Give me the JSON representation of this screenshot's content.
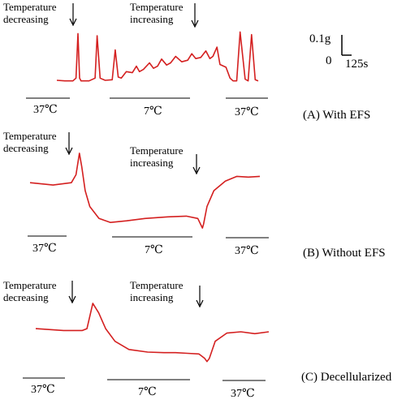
{
  "colors": {
    "trace": "#d42020",
    "ink": "#000000",
    "background": "#ffffff"
  },
  "scale_bar": {
    "force_label": "0.1g",
    "origin_label": "0",
    "time_label": "125s"
  },
  "chart_data": [
    {
      "type": "line",
      "caption": "(A) With  EFS",
      "annotations": [
        {
          "line1": "Temperature",
          "line2": "decreasing"
        },
        {
          "line1": "Temperature",
          "line2": "increasing"
        }
      ],
      "phases": [
        "37℃",
        "7℃",
        "37℃"
      ],
      "series": [
        {
          "x": [
            0,
            0.04,
            0.08,
            0.095,
            0.105,
            0.113,
            0.12,
            0.16,
            0.19,
            0.2,
            0.215,
            0.24,
            0.275,
            0.29,
            0.305,
            0.32,
            0.345,
            0.375,
            0.395,
            0.41,
            0.43,
            0.46,
            0.48,
            0.5,
            0.52,
            0.545,
            0.565,
            0.59,
            0.62,
            0.65,
            0.67,
            0.69,
            0.715,
            0.74,
            0.76,
            0.775,
            0.795,
            0.81,
            0.84,
            0.86,
            0.875,
            0.893,
            0.91,
            0.935,
            0.95,
            0.967,
            0.985,
            1.0
          ],
          "y": [
            0.06,
            0.05,
            0.05,
            0.1,
            0.92,
            0.1,
            0.05,
            0.05,
            0.1,
            0.88,
            0.1,
            0.06,
            0.07,
            0.62,
            0.12,
            0.1,
            0.22,
            0.2,
            0.32,
            0.22,
            0.26,
            0.38,
            0.28,
            0.32,
            0.45,
            0.34,
            0.38,
            0.5,
            0.4,
            0.43,
            0.55,
            0.46,
            0.48,
            0.6,
            0.46,
            0.5,
            0.67,
            0.35,
            0.3,
            0.1,
            0.05,
            0.05,
            0.95,
            0.08,
            0.05,
            0.9,
            0.07,
            0.05
          ]
        }
      ]
    },
    {
      "type": "line",
      "caption": "(B) Without  EFS",
      "annotations": [
        {
          "line1": "Temperature",
          "line2": "decreasing"
        },
        {
          "line1": "Temperature",
          "line2": "increasing"
        }
      ],
      "phases": [
        "37℃",
        "7℃",
        "37℃"
      ],
      "series": [
        {
          "x": [
            0,
            0.1,
            0.18,
            0.2,
            0.215,
            0.225,
            0.24,
            0.26,
            0.3,
            0.35,
            0.42,
            0.5,
            0.6,
            0.68,
            0.73,
            0.75,
            0.755,
            0.77,
            0.8,
            0.85,
            0.9,
            0.95,
            1.0
          ],
          "y": [
            0.6,
            0.57,
            0.6,
            0.7,
            0.97,
            0.8,
            0.5,
            0.3,
            0.15,
            0.1,
            0.12,
            0.15,
            0.17,
            0.18,
            0.15,
            0.03,
            0.08,
            0.3,
            0.5,
            0.62,
            0.68,
            0.67,
            0.68
          ]
        }
      ]
    },
    {
      "type": "line",
      "caption": "(C) Decellularized",
      "annotations": [
        {
          "line1": "Temperature",
          "line2": "decreasing"
        },
        {
          "line1": "Temperature",
          "line2": "increasing"
        }
      ],
      "phases": [
        "37℃",
        "7℃",
        "37℃"
      ],
      "series": [
        {
          "x": [
            0,
            0.12,
            0.2,
            0.22,
            0.245,
            0.27,
            0.3,
            0.34,
            0.4,
            0.48,
            0.55,
            0.6,
            0.65,
            0.7,
            0.725,
            0.735,
            0.745,
            0.77,
            0.82,
            0.88,
            0.94,
            1.0
          ],
          "y": [
            0.55,
            0.52,
            0.52,
            0.55,
            0.95,
            0.8,
            0.55,
            0.35,
            0.22,
            0.18,
            0.17,
            0.17,
            0.16,
            0.15,
            0.08,
            0.03,
            0.08,
            0.35,
            0.48,
            0.5,
            0.47,
            0.5
          ]
        }
      ]
    }
  ]
}
